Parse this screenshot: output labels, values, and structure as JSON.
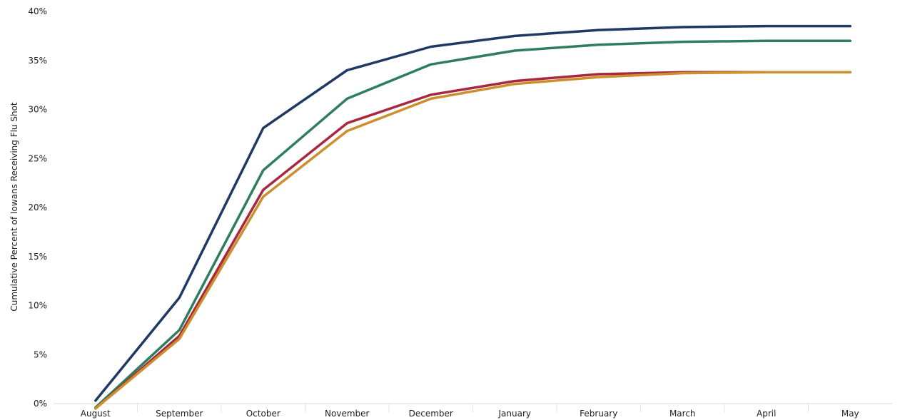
{
  "chart_data": {
    "type": "line",
    "title": "",
    "xlabel": "",
    "ylabel": "Cumulative Percent of Iowans Receiving Flu Shot",
    "categories": [
      "August",
      "September",
      "October",
      "November",
      "December",
      "January",
      "February",
      "March",
      "April",
      "May"
    ],
    "y_ticks": [
      "0%",
      "5%",
      "10%",
      "15%",
      "20%",
      "25%",
      "30%",
      "35%",
      "40%"
    ],
    "ylim": [
      0,
      40
    ],
    "grid": false,
    "legend": "none",
    "series": [
      {
        "color": "#1f3864",
        "values": [
          0.3,
          10.8,
          28.1,
          34.0,
          36.4,
          37.5,
          38.1,
          38.4,
          38.5,
          38.5
        ]
      },
      {
        "color": "#2e7d5b",
        "values": [
          -0.4,
          7.5,
          23.8,
          31.1,
          34.6,
          36.0,
          36.6,
          36.9,
          37.0,
          37.0
        ]
      },
      {
        "color": "#a8283f",
        "values": [
          -0.5,
          6.9,
          21.8,
          28.6,
          31.5,
          32.9,
          33.6,
          33.8,
          33.8,
          33.8
        ]
      },
      {
        "color": "#cc8f2e",
        "values": [
          -0.5,
          6.6,
          21.1,
          27.8,
          31.1,
          32.6,
          33.3,
          33.7,
          33.8,
          33.8
        ]
      }
    ]
  }
}
